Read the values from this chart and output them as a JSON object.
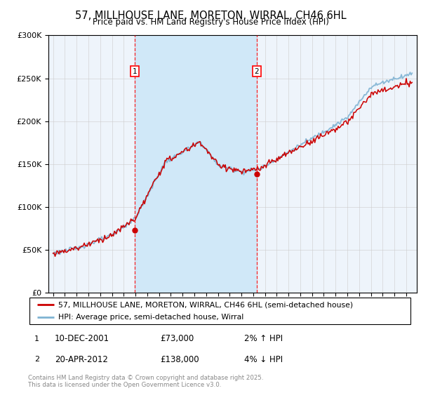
{
  "title": "57, MILLHOUSE LANE, MORETON, WIRRAL, CH46 6HL",
  "subtitle": "Price paid vs. HM Land Registry's House Price Index (HPI)",
  "legend_line1": "57, MILLHOUSE LANE, MORETON, WIRRAL, CH46 6HL (semi-detached house)",
  "legend_line2": "HPI: Average price, semi-detached house, Wirral",
  "sale1_label": "1",
  "sale1_date": "10-DEC-2001",
  "sale1_price": "£73,000",
  "sale1_hpi": "2% ↑ HPI",
  "sale2_label": "2",
  "sale2_date": "20-APR-2012",
  "sale2_price": "£138,000",
  "sale2_hpi": "4% ↓ HPI",
  "footer": "Contains HM Land Registry data © Crown copyright and database right 2025.\nThis data is licensed under the Open Government Licence v3.0.",
  "hpi_color": "#7fb3d3",
  "price_color": "#cc0000",
  "sale1_x": 2001.95,
  "sale2_x": 2012.3,
  "sale1_y": 73000,
  "sale2_y": 138000,
  "ylim": [
    0,
    300000
  ],
  "xlim_start": 1994.6,
  "xlim_end": 2025.9,
  "plot_bg": "#eef4fb",
  "span_color": "#d0e8f8",
  "grid_color": "#cccccc"
}
